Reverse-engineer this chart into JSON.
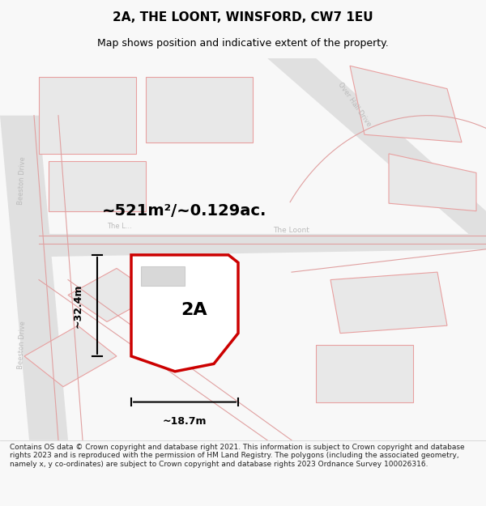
{
  "title": "2A, THE LOONT, WINSFORD, CW7 1EU",
  "subtitle": "Map shows position and indicative extent of the property.",
  "footer": "Contains OS data © Crown copyright and database right 2021. This information is subject to Crown copyright and database rights 2023 and is reproduced with the permission of HM Land Registry. The polygons (including the associated geometry, namely x, y co-ordinates) are subject to Crown copyright and database rights 2023 Ordnance Survey 100026316.",
  "area_label": "~521m²/~0.129ac.",
  "width_label": "~18.7m",
  "height_label": "~32.4m",
  "plot_label": "2A",
  "bg_color": "#f5f5f5",
  "map_bg": "#f0eeec",
  "road_color": "#e8e8e8",
  "plot_fill": "#ffffff",
  "plot_edge": "#cc0000",
  "dim_color": "#111111",
  "road_label_color": "#aaaaaa",
  "other_plot_edge": "#e8a0a0",
  "road_stroke": "#ffffff",
  "title_fontsize": 11,
  "subtitle_fontsize": 9,
  "footer_fontsize": 6.5
}
